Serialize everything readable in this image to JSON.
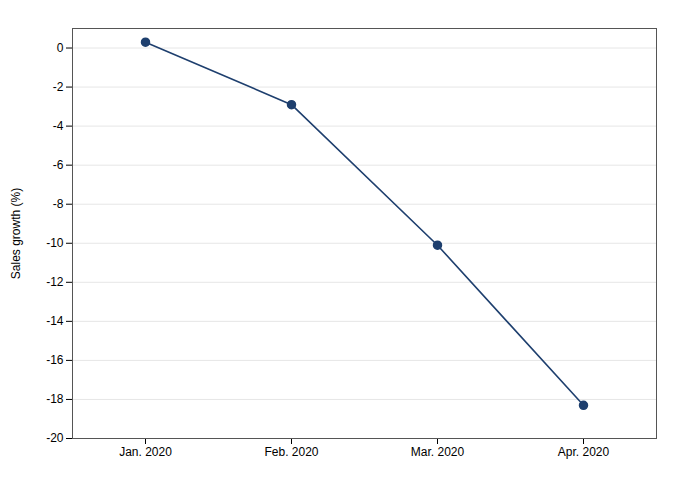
{
  "chart_data": {
    "type": "line",
    "categories": [
      "Jan. 2020",
      "Feb. 2020",
      "Mar. 2020",
      "Apr. 2020"
    ],
    "values": [
      0.3,
      -2.9,
      -10.1,
      -18.3
    ],
    "ylabel": "Sales growth (%)",
    "ylim": [
      -20,
      1
    ],
    "yticks": [
      0,
      -2,
      -4,
      -6,
      -8,
      -10,
      -12,
      -14,
      -16,
      -18,
      -20
    ],
    "grid": true,
    "color": "#1e3f6e",
    "marker": "circle"
  }
}
